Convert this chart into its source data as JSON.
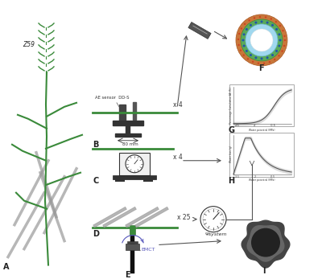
{
  "bg_color": "#ffffff",
  "label_A": "A",
  "label_B": "B",
  "label_C": "C",
  "label_D": "D",
  "label_E": "E",
  "label_F": "F",
  "label_G": "G",
  "label_H": "H",
  "label_I": "I",
  "text_Z59": "Z59",
  "text_AE": "AE sensor  DD-S",
  "text_80mm": "80 mm",
  "text_x4_B": "x 4",
  "text_x4_C": "x 4",
  "text_x25": "x 25",
  "text_Psystem": "Ψsystem",
  "text_EMCT": "EMCT",
  "arrow_color": "#555555",
  "green_color": "#3a8a3a",
  "dark_color": "#333333",
  "gray_color": "#999999",
  "light_gray": "#cccccc",
  "brown_color": "#c8773a",
  "cyan_color": "#a0d8ef",
  "blue_purple": "#5555bb"
}
